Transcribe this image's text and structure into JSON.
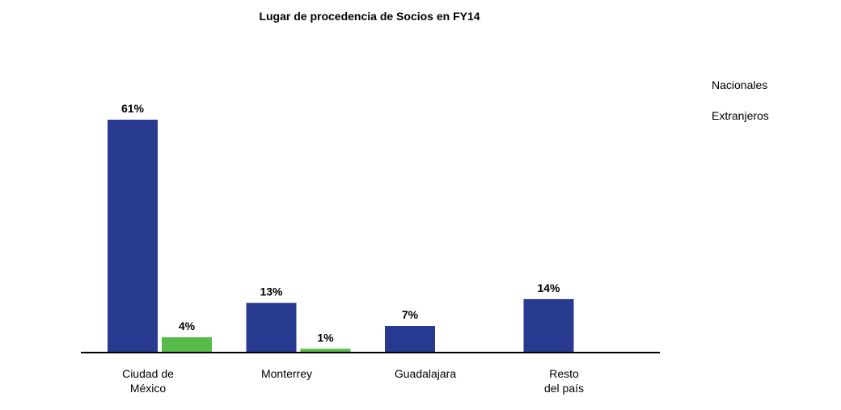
{
  "chart_data": {
    "type": "bar",
    "title": "Lugar de procedencia de Socios en FY14",
    "xlabel": "",
    "ylabel": "",
    "ylim": [
      0,
      100
    ],
    "grid": false,
    "legend_position": "right",
    "categories": [
      [
        "Ciudad de",
        "México"
      ],
      [
        "Monterrey"
      ],
      [
        "Guadalajara"
      ],
      [
        "Resto",
        "del país"
      ]
    ],
    "series": [
      {
        "name": "Nacionales",
        "color": "#283a90",
        "values": [
          61,
          13,
          7,
          14
        ],
        "labels": [
          "61%",
          "13%",
          "7%",
          "14%"
        ]
      },
      {
        "name": "Extranjeros",
        "color": "#57bb4a",
        "values": [
          4,
          1,
          null,
          null
        ],
        "labels": [
          "4%",
          "1%",
          null,
          null
        ]
      }
    ]
  }
}
